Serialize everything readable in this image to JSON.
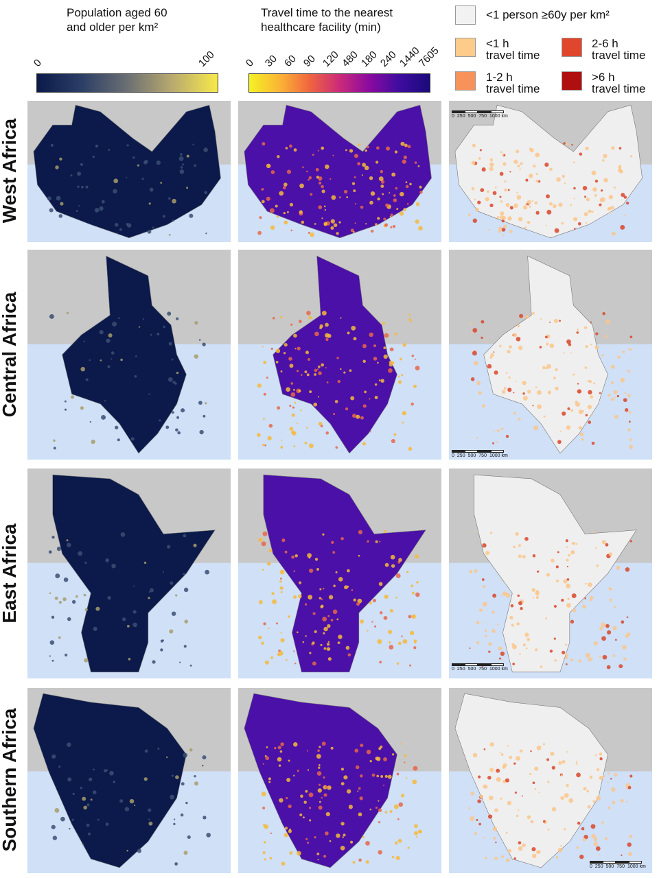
{
  "legends": {
    "population": {
      "title_line1": "Population aged 60",
      "title_line2": "and older per km²",
      "ticks": [
        "0",
        "100"
      ],
      "colors": [
        "#0b1a4a",
        "#2c3f66",
        "#6b6f73",
        "#b9aa6e",
        "#f7e94b"
      ]
    },
    "travel_time": {
      "title_line1": "Travel time to the nearest",
      "title_line2": "healthcare facility (min)",
      "ticks": [
        "0",
        "30",
        "60",
        "90",
        "120",
        "480",
        "180",
        "240",
        "1440",
        "7605"
      ],
      "colors": [
        "#f4f224",
        "#fbb535",
        "#f0663f",
        "#cb2a79",
        "#8a0aa0",
        "#3d0ca0",
        "#1a0a7a"
      ]
    },
    "categories": [
      {
        "label_line1": "<1 person ≥60y per km²",
        "label_line2": "",
        "color": "#f2f2f2"
      },
      {
        "label_line1": "<1 h",
        "label_line2": "travel time",
        "color": "#fdcb8a"
      },
      {
        "label_line1": "2-6 h",
        "label_line2": "travel time",
        "color": "#e0462c"
      },
      {
        "label_line1": "1-2 h",
        "label_line2": "travel time",
        "color": "#f7925a"
      },
      {
        "label_line1": ">6 h",
        "label_line2": "travel time",
        "color": "#b00f0f"
      }
    ]
  },
  "rows": [
    {
      "label": "West Africa",
      "scale_labels": [
        "0",
        "250",
        "500",
        "750",
        "1000 km"
      ]
    },
    {
      "label": "Central Africa",
      "scale_labels": [
        "0",
        "250",
        "500",
        "750",
        "1000 km"
      ]
    },
    {
      "label": "East Africa",
      "scale_labels": [
        "0",
        "250",
        "500",
        "750",
        "1000 km"
      ]
    },
    {
      "label": "Southern Africa",
      "scale_labels": [
        "0",
        "250",
        "500",
        "750",
        "1000 km"
      ]
    }
  ],
  "colors": {
    "ocean": "#cfe0f7",
    "land_other": "#c8c8c8",
    "pop_base": "#0b1a4a",
    "travel_base": "#4a10a8",
    "travel_roads": "#f6b93a",
    "combo_base": "#efefef",
    "combo_light": "#fbc58a",
    "combo_dark": "#d9472a"
  }
}
